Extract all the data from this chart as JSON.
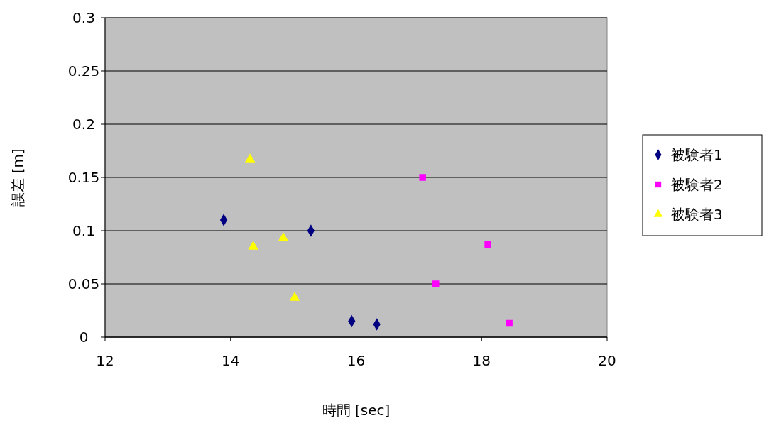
{
  "chart_data": {
    "type": "scatter",
    "xlabel": "時間 [sec]",
    "ylabel": "誤差 [m]",
    "xlim": [
      12,
      20
    ],
    "xticks": [
      12,
      14,
      16,
      18,
      20
    ],
    "ylim": [
      0,
      0.3
    ],
    "yticks": [
      0,
      0.05,
      0.1,
      0.15,
      0.2,
      0.25,
      0.3
    ],
    "grid": "y",
    "legend": "right",
    "series": [
      {
        "name": "被験者1",
        "color": "#000080",
        "marker": "diamond",
        "x": [
          13.89,
          15.28,
          15.93,
          16.33
        ],
        "values": [
          0.11,
          0.1,
          0.015,
          0.012
        ]
      },
      {
        "name": "被験者2",
        "color": "#ff00ff",
        "marker": "square",
        "x": [
          17.06,
          17.27,
          18.1,
          18.44
        ],
        "values": [
          0.15,
          0.05,
          0.087,
          0.013
        ]
      },
      {
        "name": "被験者3",
        "color": "#ffff00",
        "marker": "triangle",
        "x": [
          14.31,
          14.36,
          14.84,
          15.02
        ],
        "values": [
          0.167,
          0.085,
          0.093,
          0.037
        ]
      }
    ]
  }
}
